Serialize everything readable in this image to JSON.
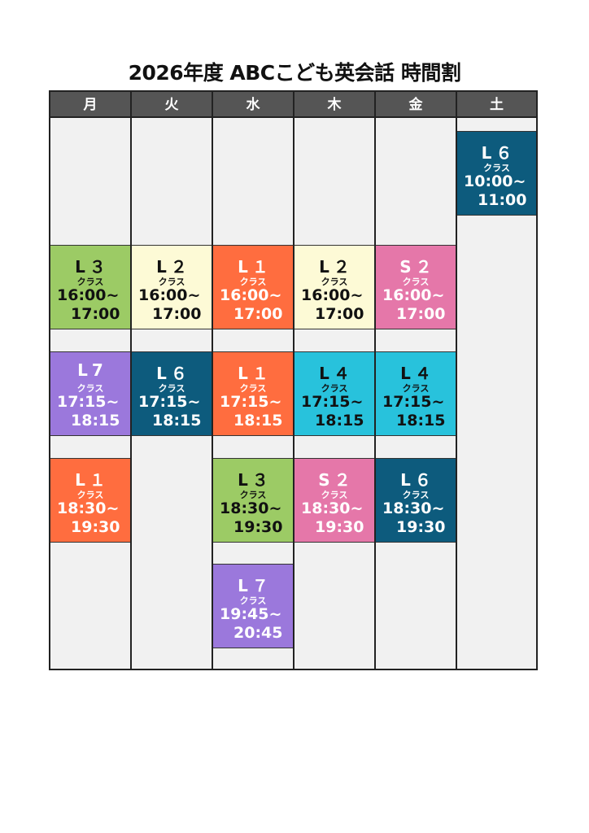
{
  "title": "2026年度 ABCこども英会話 時間割",
  "days": [
    "月",
    "火",
    "水",
    "木",
    "金",
    "土"
  ],
  "class_suffix": "クラス",
  "colors": {
    "L1": "#ff6d3f",
    "L2": "#fdfad6",
    "L3": "#9ccb65",
    "L4": "#28c2dc",
    "L6": "#0d5b7d",
    "L7": "#9b78dc",
    "S2": "#e577a9",
    "header": "#555555",
    "cell": "#f1f1f1"
  },
  "lessons": [
    {
      "day": 0,
      "slot": 1,
      "name": "L３",
      "type": "L3",
      "start": "16:00~",
      "end": "17:00"
    },
    {
      "day": 0,
      "slot": 2,
      "name": "L7",
      "type": "L7",
      "start": "17:15~",
      "end": "18:15"
    },
    {
      "day": 0,
      "slot": 3,
      "name": "L１",
      "type": "L1",
      "start": "18:30~",
      "end": "19:30"
    },
    {
      "day": 1,
      "slot": 1,
      "name": "L２",
      "type": "L2",
      "start": "16:00~",
      "end": "17:00"
    },
    {
      "day": 1,
      "slot": 2,
      "name": "L６",
      "type": "L6",
      "start": "17:15~",
      "end": "18:15"
    },
    {
      "day": 2,
      "slot": 1,
      "name": "L１",
      "type": "L1",
      "start": "16:00~",
      "end": "17:00"
    },
    {
      "day": 2,
      "slot": 2,
      "name": "L１",
      "type": "L1",
      "start": "17:15~",
      "end": "18:15"
    },
    {
      "day": 2,
      "slot": 3,
      "name": "L３",
      "type": "L3",
      "start": "18:30~",
      "end": "19:30"
    },
    {
      "day": 2,
      "slot": 4,
      "name": "L７",
      "type": "L7",
      "start": "19:45~",
      "end": "20:45"
    },
    {
      "day": 3,
      "slot": 1,
      "name": "L２",
      "type": "L2",
      "start": "16:00~",
      "end": "17:00"
    },
    {
      "day": 3,
      "slot": 2,
      "name": "L４",
      "type": "L4",
      "start": "17:15~",
      "end": "18:15"
    },
    {
      "day": 3,
      "slot": 3,
      "name": "S２",
      "type": "S2",
      "start": "18:30~",
      "end": "19:30"
    },
    {
      "day": 4,
      "slot": 1,
      "name": "S２",
      "type": "S2",
      "start": "16:00~",
      "end": "17:00"
    },
    {
      "day": 4,
      "slot": 2,
      "name": "L４",
      "type": "L4",
      "start": "17:15~",
      "end": "18:15"
    },
    {
      "day": 4,
      "slot": 3,
      "name": "L６",
      "type": "L6",
      "start": "18:30~",
      "end": "19:30"
    },
    {
      "day": 5,
      "slot": 0,
      "name": "L６",
      "type": "L6",
      "start": "10:00~",
      "end": "11:00"
    }
  ]
}
